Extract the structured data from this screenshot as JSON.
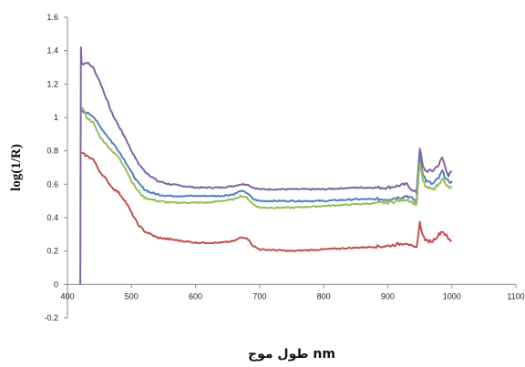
{
  "chart_data": {
    "type": "line",
    "title": "",
    "xlabel": "nm طول موج",
    "ylabel": "log(1/R)",
    "xlim": [
      400,
      1100
    ],
    "ylim": [
      -0.2,
      1.6
    ],
    "x_ticks": [
      400,
      500,
      600,
      700,
      800,
      900,
      1000,
      1100
    ],
    "y_ticks": [
      -0.2,
      0,
      0.2,
      0.4,
      0.6,
      0.8,
      1,
      1.2,
      1.4,
      1.6
    ],
    "x_tick_labels": [
      "400",
      "500",
      "600",
      "700",
      "800",
      "900",
      "1000",
      "1100"
    ],
    "y_tick_labels": [
      "-0.2",
      "0",
      "0.2",
      "0.4",
      "0.6",
      "0.8",
      "1",
      "1.2",
      "1.4",
      "1.6"
    ],
    "grid": false,
    "legend": "none",
    "series": [
      {
        "color": "#8064a2",
        "x": [
          420,
          421,
          422,
          425,
          430,
          440,
          450,
          460,
          470,
          480,
          490,
          500,
          510,
          520,
          530,
          540,
          560,
          580,
          600,
          620,
          640,
          660,
          670,
          680,
          690,
          700,
          750,
          800,
          850,
          900,
          930,
          940,
          945,
          950,
          955,
          960,
          970,
          980,
          985,
          990,
          995,
          1000
        ],
        "y": [
          0.0,
          1.42,
          1.33,
          1.32,
          1.33,
          1.3,
          1.22,
          1.12,
          1.02,
          0.95,
          0.88,
          0.8,
          0.73,
          0.68,
          0.65,
          0.62,
          0.6,
          0.59,
          0.58,
          0.58,
          0.58,
          0.59,
          0.6,
          0.6,
          0.58,
          0.57,
          0.57,
          0.57,
          0.58,
          0.58,
          0.6,
          0.56,
          0.55,
          0.82,
          0.7,
          0.68,
          0.68,
          0.72,
          0.76,
          0.7,
          0.65,
          0.68
        ]
      },
      {
        "color": "#4f81bd",
        "x": [
          422,
          425,
          430,
          440,
          450,
          460,
          470,
          480,
          490,
          500,
          510,
          520,
          530,
          540,
          560,
          580,
          600,
          620,
          640,
          660,
          670,
          680,
          690,
          700,
          750,
          800,
          850,
          900,
          930,
          940,
          945,
          950,
          955,
          960,
          970,
          980,
          985,
          990,
          995,
          1000
        ],
        "y": [
          1.04,
          1.03,
          1.03,
          1.01,
          0.95,
          0.9,
          0.85,
          0.8,
          0.74,
          0.67,
          0.61,
          0.57,
          0.55,
          0.54,
          0.53,
          0.53,
          0.53,
          0.53,
          0.53,
          0.54,
          0.56,
          0.55,
          0.51,
          0.5,
          0.5,
          0.5,
          0.51,
          0.51,
          0.53,
          0.51,
          0.5,
          0.78,
          0.66,
          0.62,
          0.6,
          0.64,
          0.68,
          0.64,
          0.61,
          0.62
        ]
      },
      {
        "color": "#9bbb59",
        "x": [
          422,
          425,
          430,
          440,
          450,
          460,
          470,
          480,
          490,
          500,
          510,
          520,
          530,
          540,
          560,
          580,
          600,
          620,
          640,
          660,
          670,
          680,
          690,
          700,
          750,
          800,
          850,
          900,
          930,
          940,
          945,
          950,
          955,
          960,
          970,
          980,
          985,
          990,
          995,
          1000
        ],
        "y": [
          1.06,
          1.05,
          1.0,
          0.97,
          0.89,
          0.84,
          0.8,
          0.76,
          0.7,
          0.62,
          0.56,
          0.52,
          0.51,
          0.5,
          0.49,
          0.49,
          0.49,
          0.49,
          0.5,
          0.51,
          0.53,
          0.52,
          0.48,
          0.46,
          0.46,
          0.47,
          0.48,
          0.49,
          0.51,
          0.49,
          0.48,
          0.73,
          0.62,
          0.58,
          0.57,
          0.6,
          0.64,
          0.6,
          0.58,
          0.58
        ]
      },
      {
        "color": "#c0504d",
        "x": [
          422,
          425,
          430,
          440,
          450,
          460,
          470,
          480,
          490,
          500,
          510,
          520,
          530,
          540,
          560,
          580,
          600,
          620,
          640,
          660,
          670,
          680,
          690,
          700,
          750,
          800,
          850,
          900,
          930,
          940,
          945,
          950,
          955,
          960,
          970,
          980,
          985,
          990,
          995,
          1000
        ],
        "y": [
          0.79,
          0.78,
          0.77,
          0.75,
          0.68,
          0.63,
          0.58,
          0.55,
          0.5,
          0.43,
          0.36,
          0.32,
          0.3,
          0.28,
          0.27,
          0.26,
          0.25,
          0.25,
          0.25,
          0.26,
          0.28,
          0.28,
          0.23,
          0.21,
          0.2,
          0.21,
          0.22,
          0.23,
          0.25,
          0.22,
          0.22,
          0.37,
          0.29,
          0.26,
          0.26,
          0.3,
          0.32,
          0.3,
          0.27,
          0.26
        ]
      }
    ]
  }
}
